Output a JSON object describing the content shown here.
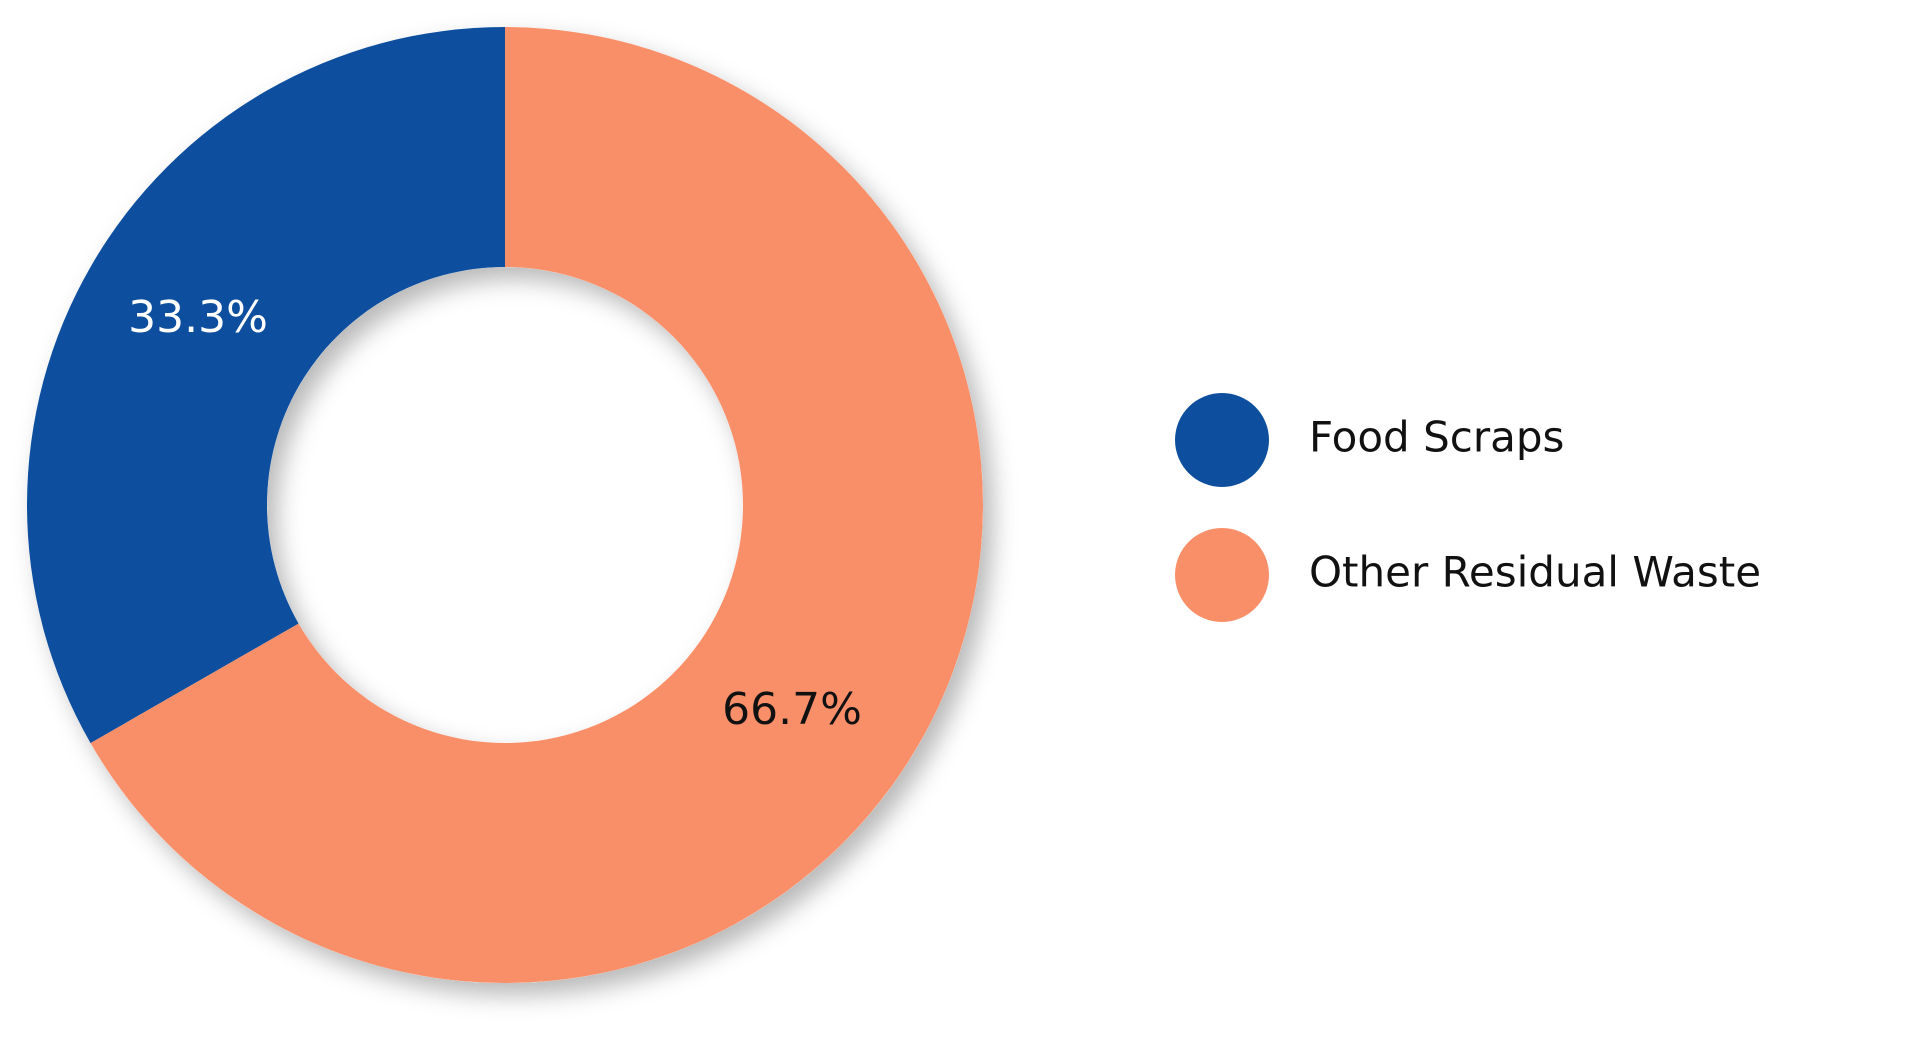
{
  "chart_data": {
    "type": "pie",
    "variant": "donut",
    "categories": [
      "Food Scraps",
      "Other Residual Waste"
    ],
    "values": [
      33.3,
      66.7
    ],
    "data_labels": [
      "33.3%",
      "66.7%"
    ],
    "colors": [
      "#0d4f9e",
      "#f98f69"
    ],
    "label_colors": [
      "#ffffff",
      "#111111"
    ],
    "title": "",
    "legend": "right",
    "grid": false
  }
}
